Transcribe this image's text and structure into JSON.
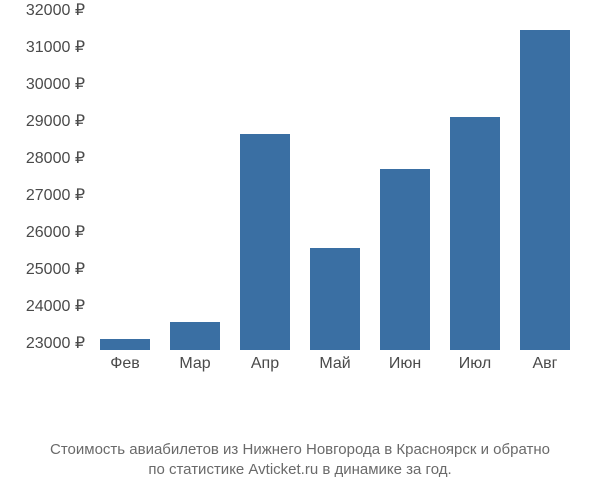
{
  "chart": {
    "type": "bar",
    "background_color": "#ffffff",
    "bar_color": "#3a6fa3",
    "text_color": "#4a4a4a",
    "caption_color": "#6a6a6a",
    "categories": [
      "Фев",
      "Мар",
      "Апр",
      "Май",
      "Июн",
      "Июл",
      "Авг"
    ],
    "values": [
      23100,
      23550,
      28650,
      25550,
      27700,
      29100,
      31450
    ],
    "ylim": [
      22800,
      32000
    ],
    "ytick_step": 1000,
    "ytick_labels": [
      "23000 ₽",
      "24000 ₽",
      "25000 ₽",
      "26000 ₽",
      "27000 ₽",
      "28000 ₽",
      "29000 ₽",
      "30000 ₽",
      "31000 ₽",
      "32000 ₽"
    ],
    "ytick_values": [
      23000,
      24000,
      25000,
      26000,
      27000,
      28000,
      29000,
      30000,
      31000,
      32000
    ],
    "tick_fontsize": 16,
    "bar_width": 0.72,
    "caption_line1": "Стоимость авиабилетов из Нижнего Новгорода в Красноярск и обратно",
    "caption_line2": "по статистике Avticket.ru в динамике за год.",
    "caption_fontsize": 15
  }
}
